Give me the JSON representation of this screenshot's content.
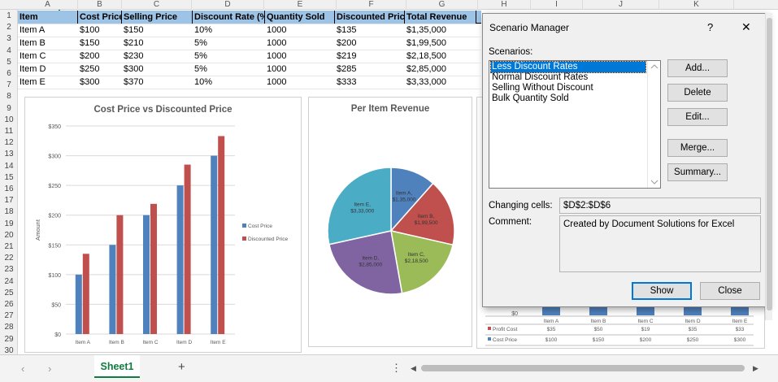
{
  "columns": [
    "A",
    "B",
    "C",
    "D",
    "E",
    "F",
    "G",
    "H",
    "I",
    "J",
    "K"
  ],
  "rows": [
    "1",
    "2",
    "3",
    "4",
    "5",
    "6",
    "7",
    "8",
    "9",
    "10",
    "11",
    "12",
    "13",
    "14",
    "15",
    "16",
    "17",
    "18",
    "19",
    "20",
    "21",
    "22",
    "23",
    "24",
    "25",
    "26",
    "27",
    "28",
    "29",
    "30"
  ],
  "table": {
    "headers": [
      "Item",
      "Cost Price",
      "Selling Price",
      "Discount Rate (%",
      "Quantity Sold",
      "Discounted Price",
      "Total Revenue"
    ],
    "rows": [
      [
        "Item A",
        "$100",
        "$150",
        "10%",
        "1000",
        "$135",
        "$1,35,000"
      ],
      [
        "Item B",
        "$150",
        "$210",
        "5%",
        "1000",
        "$200",
        "$1,99,500"
      ],
      [
        "Item C",
        "$200",
        "$230",
        "5%",
        "1000",
        "$219",
        "$2,18,500"
      ],
      [
        "Item D",
        "$250",
        "$300",
        "5%",
        "1000",
        "$285",
        "$2,85,000"
      ],
      [
        "Item E",
        "$300",
        "$370",
        "10%",
        "1000",
        "$333",
        "$3,33,000"
      ]
    ]
  },
  "charts": {
    "bar": {
      "title": "Cost Price vs Discounted Price",
      "ylabel": "Amount",
      "yticks": [
        "$350",
        "$300",
        "$250",
        "$200",
        "$150",
        "$100",
        "$50",
        "$0"
      ],
      "legend": [
        "Cost Price",
        "Discounted Price"
      ]
    },
    "pie": {
      "title": "Per Item Revenue",
      "labels": [
        [
          "Item A,",
          "$1,35,000"
        ],
        [
          "Item B,",
          "$1,99,500"
        ],
        [
          "Item C,",
          "$2,18,500"
        ],
        [
          "Item D,",
          "$2,85,000"
        ],
        [
          "Item E,",
          "$3,33,000"
        ]
      ]
    },
    "profit": {
      "ytick": "$0",
      "categories": [
        "Item A",
        "Item B",
        "Item C",
        "Item D",
        "Item E"
      ],
      "rows": [
        {
          "name": "Profit Cost",
          "values": [
            "$35",
            "$50",
            "$19",
            "$35",
            "$33"
          ]
        },
        {
          "name": "Cost Price",
          "values": [
            "$100",
            "$150",
            "$200",
            "$250",
            "$300"
          ]
        }
      ]
    }
  },
  "chart_data": [
    {
      "type": "bar",
      "title": "Cost Price vs Discounted Price",
      "xlabel": "",
      "ylabel": "Amount",
      "categories": [
        "Item A",
        "Item B",
        "Item C",
        "Item D",
        "Item E"
      ],
      "series": [
        {
          "name": "Cost Price",
          "values": [
            100,
            150,
            200,
            250,
            300
          ],
          "color": "#4f81bd"
        },
        {
          "name": "Discounted Price",
          "values": [
            135,
            200,
            219,
            285,
            333
          ],
          "color": "#c0504d"
        }
      ],
      "ylim": [
        0,
        350
      ],
      "legend_position": "right"
    },
    {
      "type": "pie",
      "title": "Per Item Revenue",
      "categories": [
        "Item A",
        "Item B",
        "Item C",
        "Item D",
        "Item E"
      ],
      "values": [
        135000,
        199500,
        218500,
        285000,
        333000
      ],
      "colors": [
        "#4f81bd",
        "#c0504d",
        "#9bbb59",
        "#8064a2",
        "#4bacc6"
      ]
    }
  ],
  "dialog": {
    "title": "Scenario Manager",
    "help": "?",
    "close": "✕",
    "scenarios_label": "Scenarios:",
    "scenarios": [
      "Less Discount Rates",
      "Normal Discount Rates",
      "Selling Without Discount",
      "Bulk Quantity Sold"
    ],
    "selected_index": 0,
    "buttons": {
      "add": "Add...",
      "delete": "Delete",
      "edit": "Edit...",
      "merge": "Merge...",
      "summary": "Summary..."
    },
    "changing_cells_label": "Changing cells:",
    "changing_cells_value": "$D$2:$D$6",
    "comment_label": "Comment:",
    "comment_value": "Created by Document Solutions for Excel",
    "show": "Show",
    "close_button": "Close"
  },
  "sheet_tab": "Sheet1",
  "colors": {
    "header_fill": "#9dc3e6",
    "selected": "#0078d7",
    "tab_underline": "#107c41"
  }
}
